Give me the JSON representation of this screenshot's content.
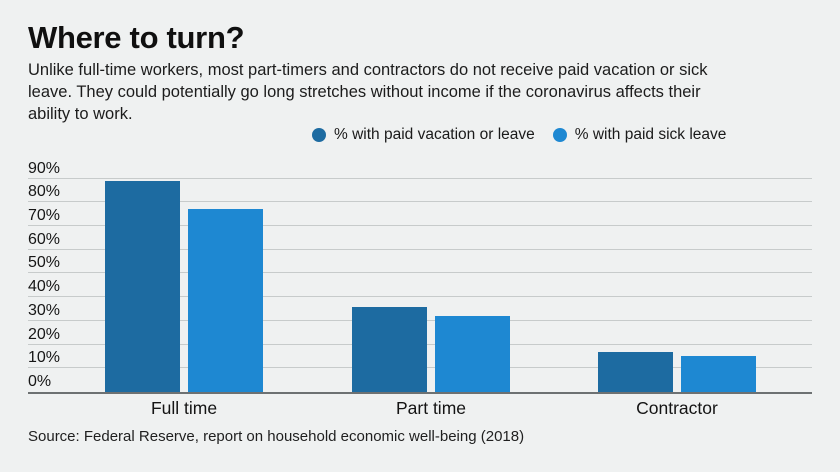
{
  "header": {
    "title": "Where to turn?",
    "subtitle_lines": [
      "Unlike full-time workers, most part-timers and contractors do not receive paid vacation or sick",
      "leave. They could potentially go long stretches without income if the coronavirus affects their",
      "ability to work."
    ]
  },
  "legend": [
    {
      "label": "% with paid vacation or leave",
      "color": "#1d6ba1"
    },
    {
      "label": "% with paid sick leave",
      "color": "#1e88d2"
    }
  ],
  "chart_data": {
    "type": "bar",
    "categories": [
      "Full time",
      "Part time",
      "Contractor"
    ],
    "series": [
      {
        "name": "% with paid vacation or leave",
        "color": "#1d6ba1",
        "values": [
          89,
          36,
          17
        ]
      },
      {
        "name": "% with paid sick leave",
        "color": "#1e88d2",
        "values": [
          77,
          32,
          15
        ]
      }
    ],
    "title": "Where to turn?",
    "xlabel": "",
    "ylabel": "",
    "ylim": [
      0,
      90
    ],
    "ytick_labels": [
      "0%",
      "10%",
      "20%",
      "30%",
      "40%",
      "50%",
      "60%",
      "70%",
      "80%",
      "90%"
    ],
    "grid": true,
    "legend_position": "top",
    "background_color": "#eff1f1",
    "gridline_color": "#c7cbcb",
    "axis_line_color": "#6d7172"
  },
  "source": "Source: Federal Reserve, report on household economic well-being (2018)"
}
